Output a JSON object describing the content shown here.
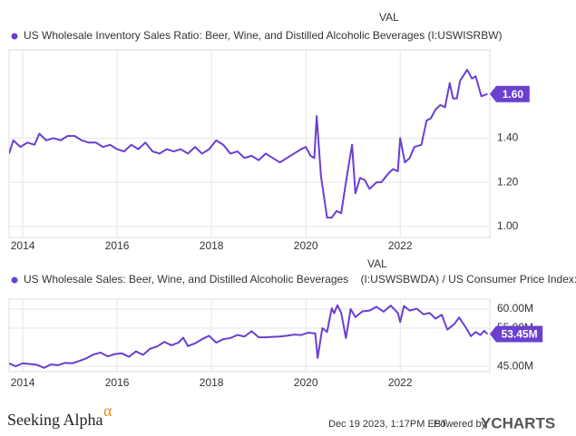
{
  "chart_data": [
    {
      "type": "line",
      "legend_header": "VAL",
      "grid": true,
      "xlim": [
        2013.71,
        2023.9
      ],
      "xticks": [
        2014,
        2016,
        2018,
        2020,
        2022
      ],
      "ylim": [
        0.95,
        1.8
      ],
      "yticks": [
        {
          "value": 1.0,
          "label": "1.00"
        },
        {
          "value": 1.2,
          "label": "1.20"
        },
        {
          "value": 1.4,
          "label": "1.40"
        }
      ],
      "x": [
        2013.71,
        2013.8,
        2013.95,
        2014.1,
        2014.25,
        2014.35,
        2014.5,
        2014.65,
        2014.8,
        2014.95,
        2015.1,
        2015.25,
        2015.4,
        2015.55,
        2015.7,
        2015.85,
        2016.0,
        2016.15,
        2016.3,
        2016.45,
        2016.6,
        2016.75,
        2016.9,
        2017.05,
        2017.2,
        2017.35,
        2017.5,
        2017.65,
        2017.8,
        2017.95,
        2018.1,
        2018.25,
        2018.4,
        2018.55,
        2018.7,
        2018.85,
        2019.0,
        2019.15,
        2019.3,
        2019.45,
        2019.6,
        2019.75,
        2019.9,
        2020.0,
        2020.1,
        2020.18,
        2020.23,
        2020.32,
        2020.45,
        2020.55,
        2020.65,
        2020.75,
        2020.85,
        2020.98,
        2021.05,
        2021.15,
        2021.25,
        2021.35,
        2021.5,
        2021.6,
        2021.75,
        2021.85,
        2021.95,
        2022.0,
        2022.1,
        2022.2,
        2022.3,
        2022.45,
        2022.56,
        2022.65,
        2022.75,
        2022.85,
        2022.95,
        2023.05,
        2023.12,
        2023.2,
        2023.27,
        2023.42,
        2023.52,
        2023.6,
        2023.72,
        2023.85
      ],
      "series": [
        {
          "name": "US Wholesale Inventory Sales Ratio: Beer, Wine, and Distilled Alcoholic Beverages (I:USWISRBW)",
          "color": "#6b3fd0",
          "values": [
            1.33,
            1.39,
            1.36,
            1.38,
            1.37,
            1.42,
            1.39,
            1.4,
            1.39,
            1.41,
            1.41,
            1.39,
            1.38,
            1.38,
            1.36,
            1.37,
            1.35,
            1.34,
            1.37,
            1.35,
            1.38,
            1.34,
            1.33,
            1.35,
            1.34,
            1.35,
            1.33,
            1.36,
            1.33,
            1.35,
            1.39,
            1.37,
            1.33,
            1.34,
            1.31,
            1.32,
            1.3,
            1.33,
            1.31,
            1.29,
            1.31,
            1.33,
            1.35,
            1.36,
            1.32,
            1.31,
            1.5,
            1.23,
            1.04,
            1.04,
            1.07,
            1.06,
            1.2,
            1.37,
            1.15,
            1.22,
            1.21,
            1.17,
            1.2,
            1.2,
            1.24,
            1.26,
            1.25,
            1.4,
            1.29,
            1.31,
            1.36,
            1.37,
            1.48,
            1.49,
            1.53,
            1.55,
            1.54,
            1.65,
            1.58,
            1.58,
            1.66,
            1.71,
            1.67,
            1.68,
            1.59,
            1.6
          ],
          "value_labels": [
            null,
            null,
            null,
            null,
            null,
            null,
            null,
            null,
            null,
            null,
            null,
            null,
            null,
            null,
            null,
            null,
            null,
            null,
            null,
            null,
            null,
            null,
            null,
            null,
            null,
            null,
            null,
            null,
            null,
            null,
            null,
            null,
            null,
            null,
            null,
            null,
            null,
            null,
            null,
            null,
            null,
            null,
            null,
            null,
            null,
            null,
            null,
            null,
            null,
            null,
            null,
            null,
            null,
            null,
            null,
            null,
            null,
            null,
            null,
            null,
            null,
            null,
            null,
            null,
            null,
            null,
            null,
            null,
            null,
            null,
            null,
            null,
            null,
            null,
            null,
            null,
            null,
            null,
            null,
            null,
            null,
            "1.60"
          ]
        }
      ]
    },
    {
      "type": "line",
      "legend_header": "VAL",
      "grid": true,
      "xlim": [
        2013.71,
        2023.9
      ],
      "xticks": [
        2014,
        2016,
        2018,
        2020,
        2022
      ],
      "ylim": [
        43600000,
        62600000
      ],
      "yticks": [
        {
          "value": 45000000,
          "label": "45.00M"
        },
        {
          "value": 55000000,
          "label": "55.00M"
        },
        {
          "value": 60000000,
          "label": "60.00M"
        }
      ],
      "x": [
        2013.71,
        2013.85,
        2014.0,
        2014.15,
        2014.3,
        2014.45,
        2014.6,
        2014.75,
        2014.9,
        2015.05,
        2015.2,
        2015.35,
        2015.5,
        2015.65,
        2015.8,
        2015.95,
        2016.1,
        2016.25,
        2016.4,
        2016.55,
        2016.7,
        2016.85,
        2017.0,
        2017.15,
        2017.3,
        2017.4,
        2017.5,
        2017.65,
        2017.8,
        2017.95,
        2018.1,
        2018.25,
        2018.4,
        2018.55,
        2018.7,
        2018.85,
        2019.0,
        2019.15,
        2019.3,
        2019.45,
        2019.6,
        2019.75,
        2019.9,
        2020.05,
        2020.2,
        2020.25,
        2020.35,
        2020.45,
        2020.55,
        2020.6,
        2020.67,
        2020.75,
        2020.85,
        2020.95,
        2021.05,
        2021.2,
        2021.35,
        2021.5,
        2021.65,
        2021.8,
        2021.95,
        2022.0,
        2022.08,
        2022.2,
        2022.35,
        2022.5,
        2022.62,
        2022.75,
        2022.88,
        2023.0,
        2023.15,
        2023.25,
        2023.4,
        2023.5,
        2023.6,
        2023.7,
        2023.78,
        2023.85
      ],
      "series": [
        {
          "name": "US Wholesale Sales: Beer, Wine, and Distilled Alcoholic Beverages    (I:USWSBWDA) / US Consumer Price Index: Alcohol",
          "color": "#6b3fd0",
          "values": [
            45800000,
            45000000,
            45800000,
            45600000,
            45400000,
            44600000,
            45500000,
            45300000,
            45900000,
            45800000,
            46400000,
            47100000,
            48100000,
            48600000,
            47600000,
            48200000,
            48400000,
            47500000,
            48900000,
            48000000,
            49600000,
            50200000,
            51400000,
            50500000,
            51200000,
            52500000,
            50300000,
            51000000,
            52100000,
            53000000,
            51200000,
            52100000,
            52400000,
            53200000,
            52800000,
            54200000,
            52600000,
            52600000,
            52700000,
            52800000,
            53000000,
            53300000,
            53200000,
            53800000,
            53600000,
            47200000,
            55000000,
            54000000,
            60200000,
            58900000,
            61000000,
            59000000,
            52400000,
            60000000,
            57900000,
            59400000,
            59600000,
            60600000,
            59300000,
            60900000,
            59000000,
            56600000,
            60800000,
            59600000,
            60100000,
            58600000,
            59000000,
            57500000,
            58500000,
            54600000,
            56100000,
            57800000,
            55000000,
            52900000,
            54000000,
            53200000,
            54300000,
            53450000
          ],
          "value_labels": [
            null,
            null,
            null,
            null,
            null,
            null,
            null,
            null,
            null,
            null,
            null,
            null,
            null,
            null,
            null,
            null,
            null,
            null,
            null,
            null,
            null,
            null,
            null,
            null,
            null,
            null,
            null,
            null,
            null,
            null,
            null,
            null,
            null,
            null,
            null,
            null,
            null,
            null,
            null,
            null,
            null,
            null,
            null,
            null,
            null,
            null,
            null,
            null,
            null,
            null,
            null,
            null,
            null,
            null,
            null,
            null,
            null,
            null,
            null,
            null,
            null,
            null,
            null,
            null,
            null,
            null,
            null,
            null,
            null,
            null,
            null,
            null,
            null,
            null,
            null,
            null,
            null,
            "53.45M"
          ]
        }
      ]
    }
  ],
  "footer": {
    "brand": "Seeking Alpha",
    "brand_mark": "α",
    "timestamp": "Dec 19 2023, 1:17PM EST.",
    "powered_by": "Powered by",
    "provider": "YCHARTS"
  }
}
